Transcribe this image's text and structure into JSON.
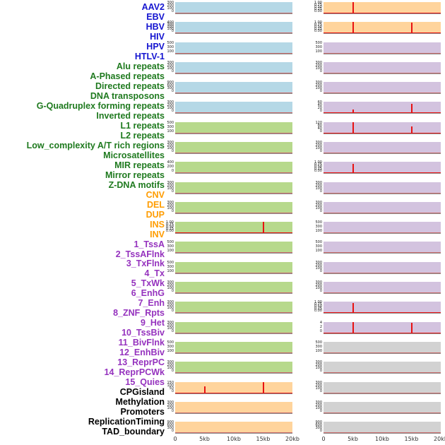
{
  "chart_data": {
    "type": "line",
    "title": "",
    "description": "Per-feature signal profile panels over a 0-20kb window; red spikes mark enrichment peaks at 5kb and 15kb",
    "x_axis": {
      "ticks": [
        "0",
        "5kb",
        "10kb",
        "15kb",
        "20kb"
      ],
      "min_kb": 0,
      "max_kb": 20
    },
    "group_colors": {
      "virus": "#1515D0",
      "repeat": "#1F7A1F",
      "sv": "#FF9C00",
      "chromhmm": "#9532BE",
      "annotation": "#000000"
    },
    "panel_colors": {
      "blue": "#B5D8E6",
      "green": "#B7D98C",
      "orange": "#FFD49C",
      "purple": "#D3C3DF",
      "gray": "#D2D2D2"
    },
    "spike_color": "#E81212",
    "row_labels": [
      {
        "label": "AAV2",
        "group": "virus"
      },
      {
        "label": "EBV",
        "group": "virus"
      },
      {
        "label": "HBV",
        "group": "virus"
      },
      {
        "label": "HIV",
        "group": "virus"
      },
      {
        "label": "HPV",
        "group": "virus"
      },
      {
        "label": "HTLV-1",
        "group": "virus"
      },
      {
        "label": "Alu repeats",
        "group": "repeat"
      },
      {
        "label": "A-Phased repeats",
        "group": "repeat"
      },
      {
        "label": "Directed repeats",
        "group": "repeat"
      },
      {
        "label": "DNA transposons",
        "group": "repeat"
      },
      {
        "label": "G-Quadruplex forming repeats",
        "group": "repeat"
      },
      {
        "label": "Inverted repeats",
        "group": "repeat"
      },
      {
        "label": "L1 repeats",
        "group": "repeat"
      },
      {
        "label": "L2 repeats",
        "group": "repeat"
      },
      {
        "label": "Low_complexity A/T rich regions",
        "group": "repeat"
      },
      {
        "label": "Microsatellites",
        "group": "repeat"
      },
      {
        "label": "MIR repeats",
        "group": "repeat"
      },
      {
        "label": "Mirror repeats",
        "group": "repeat"
      },
      {
        "label": "Z-DNA motifs",
        "group": "repeat"
      },
      {
        "label": "CNV",
        "group": "sv"
      },
      {
        "label": "DEL",
        "group": "sv"
      },
      {
        "label": "DUP",
        "group": "sv"
      },
      {
        "label": "INS",
        "group": "sv"
      },
      {
        "label": "INV",
        "group": "sv"
      },
      {
        "label": "1_TssA",
        "group": "chromhmm"
      },
      {
        "label": "2_TssAFlnk",
        "group": "chromhmm"
      },
      {
        "label": "3_TxFlnk",
        "group": "chromhmm"
      },
      {
        "label": "4_Tx",
        "group": "chromhmm"
      },
      {
        "label": "5_TxWk",
        "group": "chromhmm"
      },
      {
        "label": "6_EnhG",
        "group": "chromhmm"
      },
      {
        "label": "7_Enh",
        "group": "chromhmm"
      },
      {
        "label": "8_ZNF_Rpts",
        "group": "chromhmm"
      },
      {
        "label": "9_Het",
        "group": "chromhmm"
      },
      {
        "label": "10_TssBiv",
        "group": "chromhmm"
      },
      {
        "label": "11_BivFlnk",
        "group": "chromhmm"
      },
      {
        "label": "12_EnhBiv",
        "group": "chromhmm"
      },
      {
        "label": "13_ReprPC",
        "group": "chromhmm"
      },
      {
        "label": "14_ReprPCWk",
        "group": "chromhmm"
      },
      {
        "label": "15_Quies",
        "group": "chromhmm"
      },
      {
        "label": "CPGisland",
        "group": "annotation"
      },
      {
        "label": "Methylation",
        "group": "annotation"
      },
      {
        "label": "Promoters",
        "group": "annotation"
      },
      {
        "label": "ReplicationTiming",
        "group": "annotation"
      },
      {
        "label": "TAD_boundary",
        "group": "annotation"
      }
    ],
    "columns": [
      {
        "name": "left-profile-column",
        "panels": [
          {
            "bg": "blue",
            "yticks": [
              "300",
              "200",
              "100",
              "0"
            ],
            "spikes": []
          },
          {
            "bg": "blue",
            "yticks": [
              "400",
              "300",
              "200",
              "100",
              "0"
            ],
            "spikes": []
          },
          {
            "bg": "blue",
            "yticks": [
              "500",
              "300",
              "100"
            ],
            "spikes": []
          },
          {
            "bg": "blue",
            "yticks": [
              "300",
              "200",
              "100",
              "0"
            ],
            "spikes": []
          },
          {
            "bg": "blue",
            "yticks": [
              "900",
              "600",
              "300",
              "0"
            ],
            "spikes": []
          },
          {
            "bg": "blue",
            "yticks": [
              "300",
              "200",
              "100",
              "0"
            ],
            "spikes": []
          },
          {
            "bg": "green",
            "yticks": [
              "500",
              "300",
              "100"
            ],
            "spikes": []
          },
          {
            "bg": "green",
            "yticks": [
              "300",
              "200",
              "100",
              "0"
            ],
            "spikes": []
          },
          {
            "bg": "green",
            "yticks": [
              "400",
              "200",
              "0"
            ],
            "spikes": []
          },
          {
            "bg": "green",
            "yticks": [
              "300",
              "200",
              "100",
              "0"
            ],
            "spikes": []
          },
          {
            "bg": "green",
            "yticks": [
              "300",
              "200",
              "100",
              "0"
            ],
            "spikes": []
          },
          {
            "bg": "green",
            "yticks": [
              "1.00",
              "0.75",
              "0.50",
              "0.25",
              "0.00"
            ],
            "spikes": [
              {
                "x_kb": 15,
                "h": 1.0
              }
            ]
          },
          {
            "bg": "green",
            "yticks": [
              "500",
              "300",
              "100"
            ],
            "spikes": []
          },
          {
            "bg": "green",
            "yticks": [
              "500",
              "300",
              "100"
            ],
            "spikes": []
          },
          {
            "bg": "green",
            "yticks": [
              "300",
              "200",
              "100",
              "0"
            ],
            "spikes": []
          },
          {
            "bg": "green",
            "yticks": [
              "300",
              "200",
              "100",
              "0"
            ],
            "spikes": []
          },
          {
            "bg": "green",
            "yticks": [
              "300",
              "200",
              "100",
              "0"
            ],
            "spikes": []
          },
          {
            "bg": "green",
            "yticks": [
              "500",
              "300",
              "100"
            ],
            "spikes": []
          },
          {
            "bg": "green",
            "yticks": [
              "300",
              "200",
              "100",
              "0"
            ],
            "spikes": []
          },
          {
            "bg": "orange",
            "yticks": [
              "150",
              "100",
              "50",
              "0"
            ],
            "spikes": [
              {
                "x_kb": 5,
                "h": 0.55
              },
              {
                "x_kb": 15,
                "h": 1.0
              }
            ]
          },
          {
            "bg": "orange",
            "yticks": [
              "300",
              "200",
              "100",
              "0"
            ],
            "spikes": []
          },
          {
            "bg": "orange",
            "yticks": [
              "900",
              "600",
              "300",
              "0"
            ],
            "spikes": []
          }
        ]
      },
      {
        "name": "right-profile-column",
        "panels": [
          {
            "bg": "orange",
            "yticks": [
              "1.00",
              "0.75",
              "0.50",
              "0.25",
              "0.00"
            ],
            "spikes": [
              {
                "x_kb": 5,
                "h": 1.0
              }
            ]
          },
          {
            "bg": "orange",
            "yticks": [
              "1.00",
              "0.75",
              "0.50",
              "0.25",
              "0.00"
            ],
            "spikes": [
              {
                "x_kb": 5,
                "h": 1.0
              },
              {
                "x_kb": 15,
                "h": 0.95
              }
            ]
          },
          {
            "bg": "purple",
            "yticks": [
              "500",
              "300",
              "100"
            ],
            "spikes": []
          },
          {
            "bg": "purple",
            "yticks": [
              "300",
              "200",
              "100",
              "0"
            ],
            "spikes": []
          },
          {
            "bg": "purple",
            "yticks": [
              "300",
              "200",
              "100",
              "0"
            ],
            "spikes": []
          },
          {
            "bg": "purple",
            "yticks": [
              "60",
              "40",
              "20",
              "0"
            ],
            "spikes": [
              {
                "x_kb": 5,
                "h": 0.3
              },
              {
                "x_kb": 15,
                "h": 0.85
              }
            ]
          },
          {
            "bg": "purple",
            "yticks": [
              "120",
              "80",
              "40",
              "0"
            ],
            "spikes": [
              {
                "x_kb": 5,
                "h": 1.0
              },
              {
                "x_kb": 15,
                "h": 0.6
              }
            ]
          },
          {
            "bg": "purple",
            "yticks": [
              "300",
              "200",
              "100",
              "0"
            ],
            "spikes": []
          },
          {
            "bg": "purple",
            "yticks": [
              "1.00",
              "0.75",
              "0.50",
              "0.25",
              "0.00"
            ],
            "spikes": [
              {
                "x_kb": 5,
                "h": 0.8
              }
            ]
          },
          {
            "bg": "purple",
            "yticks": [
              "300",
              "200",
              "100",
              "0"
            ],
            "spikes": []
          },
          {
            "bg": "purple",
            "yticks": [
              "300",
              "200",
              "100",
              "0"
            ],
            "spikes": []
          },
          {
            "bg": "purple",
            "yticks": [
              "500",
              "300",
              "100"
            ],
            "spikes": []
          },
          {
            "bg": "purple",
            "yticks": [
              "500",
              "300",
              "100"
            ],
            "spikes": []
          },
          {
            "bg": "purple",
            "yticks": [
              "300",
              "200",
              "100",
              "0"
            ],
            "spikes": []
          },
          {
            "bg": "purple",
            "yticks": [
              "300",
              "200",
              "100",
              "0"
            ],
            "spikes": []
          },
          {
            "bg": "purple",
            "yticks": [
              "1.00",
              "0.75",
              "0.50",
              "0.25",
              "0.00"
            ],
            "spikes": [
              {
                "x_kb": 5,
                "h": 0.9
              }
            ]
          },
          {
            "bg": "purple",
            "yticks": [
              "4",
              "2",
              "0"
            ],
            "spikes": [
              {
                "x_kb": 5,
                "h": 1.0
              },
              {
                "x_kb": 15,
                "h": 0.9
              }
            ]
          },
          {
            "bg": "gray",
            "yticks": [
              "500",
              "300",
              "100"
            ],
            "spikes": []
          },
          {
            "bg": "gray",
            "yticks": [
              "300",
              "200",
              "100",
              "0"
            ],
            "spikes": []
          },
          {
            "bg": "gray",
            "yticks": [
              "300",
              "200",
              "100",
              "0"
            ],
            "spikes": []
          },
          {
            "bg": "gray",
            "yticks": [
              "300",
              "200",
              "100",
              "0"
            ],
            "spikes": []
          },
          {
            "bg": "gray",
            "yticks": [
              "900",
              "600",
              "300",
              "0"
            ],
            "spikes": []
          }
        ]
      }
    ]
  }
}
